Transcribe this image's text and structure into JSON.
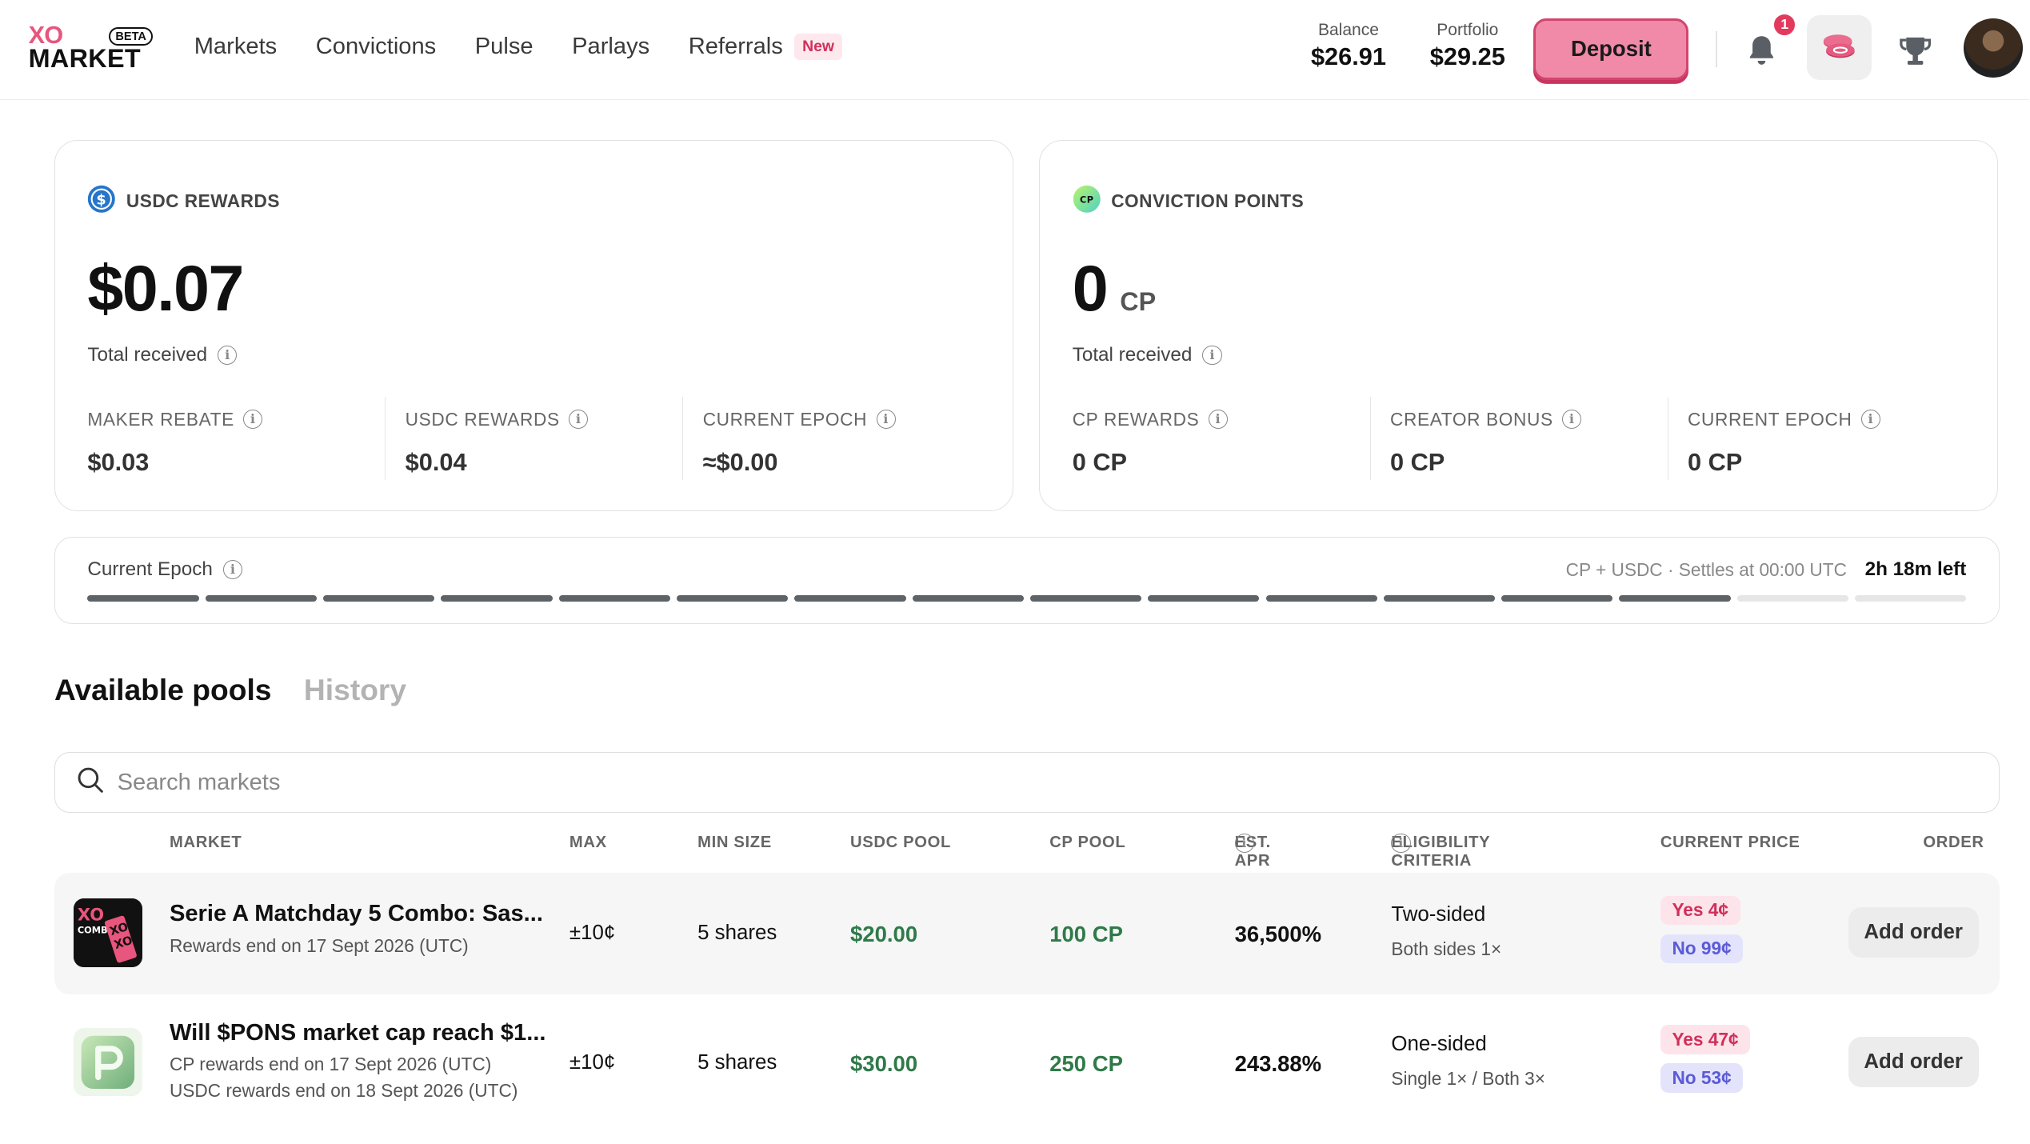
{
  "header": {
    "logo_top": "XO",
    "logo_bottom": "MARKET",
    "logo_badge": "BETA",
    "nav": [
      {
        "label": "Markets"
      },
      {
        "label": "Convictions"
      },
      {
        "label": "Pulse"
      },
      {
        "label": "Parlays"
      },
      {
        "label": "Referrals",
        "badge": "New"
      }
    ],
    "balance_label": "Balance",
    "balance_value": "$26.91",
    "portfolio_label": "Portfolio",
    "portfolio_value": "$29.25",
    "deposit_label": "Deposit",
    "notification_count": "1"
  },
  "usdc_card": {
    "title": "USDC REWARDS",
    "amount": "$0.07",
    "total_label": "Total received",
    "stats": [
      {
        "label": "MAKER REBATE",
        "value": "$0.03"
      },
      {
        "label": "USDC REWARDS",
        "value": "$0.04"
      },
      {
        "label": "CURRENT EPOCH",
        "value": "≈$0.00"
      }
    ]
  },
  "cp_card": {
    "title": "CONVICTION POINTS",
    "amount": "0",
    "unit": "CP",
    "total_label": "Total received",
    "stats": [
      {
        "label": "CP REWARDS",
        "value": "0 CP"
      },
      {
        "label": "CREATOR BONUS",
        "value": "0 CP"
      },
      {
        "label": "CURRENT EPOCH",
        "value": "0 CP"
      }
    ]
  },
  "epoch": {
    "label": "Current Epoch",
    "settles": "CP + USDC · Settles at 00:00 UTC",
    "time_left": "2h 18m left",
    "segments_total": 16,
    "segments_done": 14
  },
  "tabs": [
    {
      "label": "Available pools",
      "active": true
    },
    {
      "label": "History",
      "active": false
    }
  ],
  "search": {
    "placeholder": "Search markets"
  },
  "table": {
    "headers": {
      "market": "MARKET",
      "max": "MAX",
      "min_size": "MIN SIZE",
      "usdc_pool": "USDC POOL",
      "cp_pool": "CP POOL",
      "est_apr": "EST. APR",
      "eligibility": "ELIGIBILITY CRITERIA",
      "current_price": "CURRENT PRICE",
      "order": "ORDER"
    },
    "rows": [
      {
        "name": "Serie A Matchday 5 Combo: Sas...",
        "sub1": "Rewards end on 17 Sept 2026 (UTC)",
        "sub2": "",
        "max": "±10¢",
        "min_size": "5 shares",
        "usdc_pool": "$20.00",
        "cp_pool": "100 CP",
        "apr": "36,500%",
        "elig_type": "Two-sided",
        "elig_detail": "Both sides 1×",
        "yes": "Yes 4¢",
        "no": "No 99¢",
        "order": "Add order"
      },
      {
        "name": "Will $PONS market cap reach $1...",
        "sub1": "CP rewards end on 17 Sept 2026 (UTC)",
        "sub2": "USDC rewards end on 18 Sept 2026 (UTC)",
        "max": "±10¢",
        "min_size": "5 shares",
        "usdc_pool": "$30.00",
        "cp_pool": "250 CP",
        "apr": "243.88%",
        "elig_type": "One-sided",
        "elig_detail": "Single 1× / Both 3×",
        "yes": "Yes 47¢",
        "no": "No 53¢",
        "order": "Add order"
      }
    ]
  },
  "colors": {
    "brand_pink": "#e8557d",
    "deposit_bg": "#f08aa8",
    "pool_green": "#2f7a49",
    "yes_bg": "#fde3ea",
    "no_bg": "#e3e3fb"
  },
  "icons": [
    "usdc-icon",
    "cp-icon",
    "info-icon",
    "bell-icon",
    "coins-icon",
    "trophy-icon",
    "search-icon"
  ]
}
